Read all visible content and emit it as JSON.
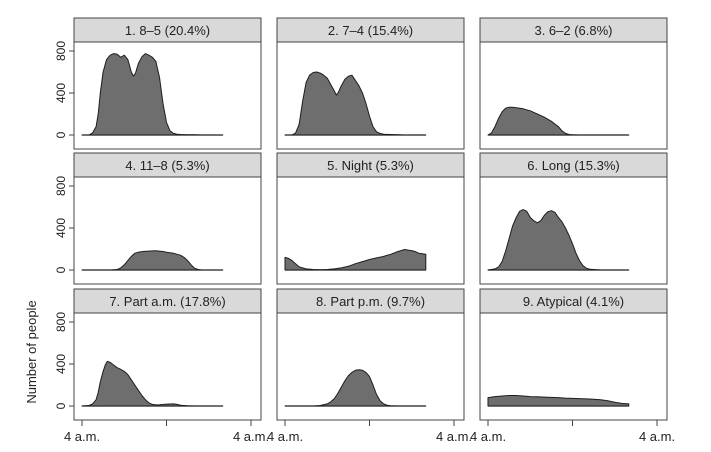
{
  "figure": {
    "ylabel": "Number of people",
    "x_tick_label": "4 a.m.",
    "y_ticks": [
      0,
      400,
      800
    ],
    "colors": {
      "fill": "#6e6e6e",
      "outline": "#1e1e1e",
      "strip": "#d9d9d9",
      "frame": "#444444"
    }
  },
  "chart_data": [
    {
      "type": "area",
      "title": "1. 8–5 (20.4%)",
      "x_range_hours": [
        4,
        28
      ],
      "ylim": [
        0,
        900
      ],
      "x": [
        4.0,
        5.0,
        5.5,
        6.0,
        6.3,
        6.6,
        7.0,
        7.5,
        8.0,
        8.5,
        9.0,
        9.5,
        10.0,
        10.5,
        11.0,
        11.3,
        11.6,
        12.0,
        12.5,
        13.0,
        13.5,
        14.0,
        14.5,
        15.0,
        15.5,
        16.0,
        16.5,
        17.0,
        17.5,
        18.0,
        19.0,
        20.0,
        21.0,
        24.0
      ],
      "y": [
        0,
        0,
        20,
        80,
        200,
        400,
        600,
        720,
        760,
        775,
        770,
        740,
        760,
        720,
        600,
        560,
        590,
        680,
        745,
        775,
        760,
        740,
        700,
        550,
        300,
        120,
        40,
        15,
        8,
        5,
        3,
        2,
        0,
        0
      ]
    },
    {
      "type": "area",
      "title": "2. 7–4 (15.4%)",
      "x_range_hours": [
        4,
        28
      ],
      "ylim": [
        0,
        900
      ],
      "x": [
        4.0,
        5.0,
        5.5,
        6.0,
        6.5,
        7.0,
        7.5,
        8.0,
        8.5,
        9.0,
        9.5,
        10.0,
        10.5,
        11.0,
        11.3,
        11.6,
        12.0,
        12.5,
        13.0,
        13.5,
        14.0,
        14.5,
        15.0,
        15.5,
        16.0,
        16.5,
        17.0,
        17.5,
        18.0,
        19.0,
        20.0,
        21.0,
        24.0
      ],
      "y": [
        0,
        0,
        20,
        100,
        320,
        500,
        570,
        595,
        600,
        590,
        570,
        540,
        480,
        420,
        380,
        410,
        470,
        530,
        560,
        570,
        520,
        470,
        400,
        300,
        180,
        80,
        30,
        15,
        8,
        5,
        3,
        0,
        0
      ]
    },
    {
      "type": "area",
      "title": "3. 6–2 (6.8%)",
      "x_range_hours": [
        4,
        28
      ],
      "ylim": [
        0,
        900
      ],
      "x": [
        4.0,
        4.5,
        5.0,
        5.5,
        6.0,
        6.5,
        7.0,
        7.5,
        8.0,
        8.5,
        9.0,
        9.5,
        10.0,
        10.5,
        11.0,
        11.5,
        12.0,
        12.5,
        13.0,
        13.5,
        14.0,
        14.5,
        15.0,
        15.5,
        16.0,
        17.0,
        18.0,
        20.0,
        22.0,
        24.0
      ],
      "y": [
        0,
        20,
        80,
        160,
        220,
        255,
        265,
        265,
        260,
        255,
        250,
        240,
        230,
        215,
        200,
        185,
        170,
        150,
        130,
        105,
        80,
        40,
        15,
        5,
        2,
        0,
        0,
        0,
        0,
        0
      ]
    },
    {
      "type": "area",
      "title": "4. 11–8 (5.3%)",
      "x_range_hours": [
        4,
        28
      ],
      "ylim": [
        0,
        900
      ],
      "x": [
        4.0,
        6.0,
        8.0,
        9.0,
        9.5,
        10.0,
        10.5,
        11.0,
        11.5,
        12.0,
        12.5,
        13.0,
        13.5,
        14.0,
        14.5,
        15.0,
        15.5,
        16.0,
        16.5,
        17.0,
        17.5,
        18.0,
        18.5,
        19.0,
        19.5,
        20.0,
        20.5,
        21.0,
        22.0,
        24.0
      ],
      "y": [
        0,
        0,
        0,
        5,
        20,
        50,
        90,
        130,
        160,
        170,
        175,
        178,
        180,
        182,
        183,
        180,
        176,
        170,
        165,
        160,
        150,
        140,
        120,
        90,
        50,
        15,
        5,
        0,
        0,
        0
      ]
    },
    {
      "type": "area",
      "title": "5. Night (5.3%)",
      "x_range_hours": [
        4,
        28
      ],
      "ylim": [
        0,
        900
      ],
      "x": [
        4.0,
        4.5,
        5.0,
        5.5,
        6.0,
        7.0,
        8.0,
        9.0,
        10.0,
        11.0,
        12.0,
        13.0,
        14.0,
        15.0,
        16.0,
        17.0,
        18.0,
        19.0,
        20.0,
        21.0,
        21.5,
        22.0,
        22.5,
        23.0,
        24.0
      ],
      "y": [
        120,
        110,
        90,
        60,
        30,
        10,
        5,
        3,
        5,
        10,
        20,
        35,
        60,
        80,
        100,
        115,
        130,
        150,
        175,
        195,
        190,
        185,
        175,
        160,
        150
      ]
    },
    {
      "type": "area",
      "title": "6. Long (15.3%)",
      "x_range_hours": [
        4,
        28
      ],
      "ylim": [
        0,
        900
      ],
      "x": [
        4.0,
        5.0,
        5.5,
        6.0,
        6.5,
        7.0,
        7.5,
        8.0,
        8.5,
        9.0,
        9.5,
        10.0,
        10.5,
        11.0,
        11.5,
        12.0,
        12.5,
        13.0,
        13.5,
        14.0,
        14.5,
        15.0,
        15.5,
        16.0,
        16.5,
        17.0,
        17.5,
        18.0,
        18.5,
        19.0,
        20.0,
        24.0
      ],
      "y": [
        0,
        10,
        30,
        80,
        180,
        300,
        420,
        500,
        560,
        575,
        560,
        500,
        470,
        450,
        470,
        520,
        555,
        565,
        550,
        500,
        460,
        400,
        330,
        250,
        160,
        90,
        40,
        15,
        8,
        5,
        0,
        0
      ]
    },
    {
      "type": "area",
      "title": "7. Part a.m. (17.8%)",
      "x_range_hours": [
        4,
        28
      ],
      "ylim": [
        0,
        900
      ],
      "x": [
        4.0,
        5.0,
        5.5,
        6.0,
        6.3,
        6.6,
        7.0,
        7.3,
        7.6,
        8.0,
        8.5,
        9.0,
        9.5,
        10.0,
        10.5,
        11.0,
        11.5,
        12.0,
        12.5,
        13.0,
        13.5,
        14.0,
        14.5,
        15.0,
        16.0,
        17.0,
        17.5,
        18.0,
        19.0,
        20.0,
        24.0
      ],
      "y": [
        0,
        5,
        20,
        60,
        130,
        230,
        330,
        390,
        425,
        415,
        390,
        365,
        350,
        330,
        300,
        250,
        200,
        150,
        100,
        60,
        30,
        15,
        10,
        12,
        18,
        20,
        15,
        8,
        3,
        0,
        0
      ]
    },
    {
      "type": "area",
      "title": "8. Part p.m. (9.7%)",
      "x_range_hours": [
        4,
        28
      ],
      "ylim": [
        0,
        900
      ],
      "x": [
        4.0,
        6.0,
        8.0,
        9.0,
        10.0,
        10.5,
        11.0,
        11.5,
        12.0,
        12.5,
        13.0,
        13.5,
        14.0,
        14.5,
        15.0,
        15.5,
        16.0,
        16.5,
        17.0,
        17.5,
        18.0,
        18.5,
        19.0,
        20.0,
        21.0,
        24.0
      ],
      "y": [
        0,
        0,
        0,
        5,
        20,
        40,
        70,
        120,
        180,
        240,
        290,
        320,
        340,
        345,
        340,
        320,
        280,
        200,
        110,
        50,
        20,
        8,
        3,
        0,
        0,
        0
      ]
    },
    {
      "type": "area",
      "title": "9. Atypical (4.1%)",
      "x_range_hours": [
        4,
        28
      ],
      "ylim": [
        0,
        900
      ],
      "x": [
        4.0,
        5.0,
        6.0,
        7.0,
        8.0,
        9.0,
        10.0,
        11.0,
        12.0,
        13.0,
        14.0,
        15.0,
        16.0,
        17.0,
        18.0,
        19.0,
        20.0,
        21.0,
        22.0,
        23.0,
        24.0
      ],
      "y": [
        80,
        90,
        95,
        100,
        100,
        95,
        90,
        88,
        85,
        82,
        80,
        75,
        72,
        70,
        68,
        65,
        60,
        50,
        35,
        25,
        20
      ]
    }
  ]
}
